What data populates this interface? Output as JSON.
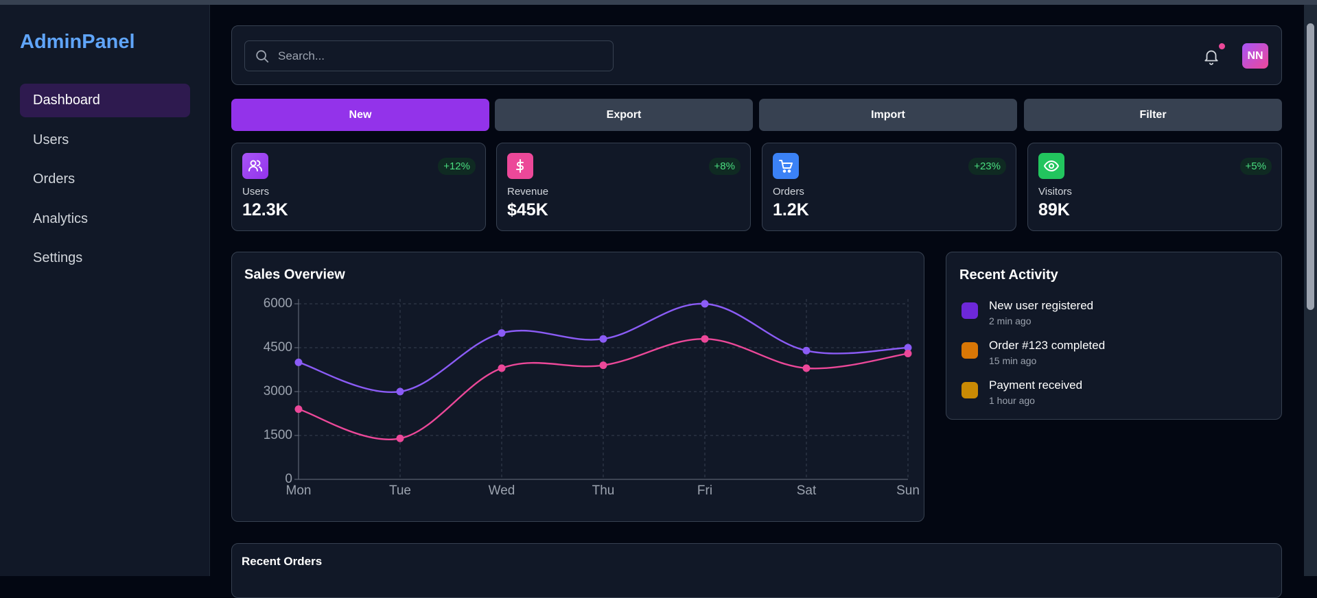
{
  "brand": "AdminPanel",
  "nav": [
    "Dashboard",
    "Users",
    "Orders",
    "Analytics",
    "Settings"
  ],
  "search_placeholder": "Search...",
  "avatar": "NN",
  "buttons": [
    "New",
    "Export",
    "Import",
    "Filter"
  ],
  "stats": [
    {
      "label": "Users",
      "value": "12.3K",
      "change": "+12%"
    },
    {
      "label": "Revenue",
      "value": "$45K",
      "change": "+8%"
    },
    {
      "label": "Orders",
      "value": "1.2K",
      "change": "+23%"
    },
    {
      "label": "Visitors",
      "value": "89K",
      "change": "+5%"
    }
  ],
  "chart_data": {
    "type": "line",
    "title": "Sales Overview",
    "categories": [
      "Mon",
      "Tue",
      "Wed",
      "Thu",
      "Fri",
      "Sat",
      "Sun"
    ],
    "series": [
      {
        "color": "#8b5cf6",
        "values": [
          4000,
          3000,
          5000,
          4800,
          6000,
          4400,
          4500
        ]
      },
      {
        "color": "#ec4899",
        "values": [
          2400,
          1400,
          3800,
          3900,
          4800,
          3800,
          4300
        ]
      }
    ],
    "ylim": [
      0,
      6000
    ],
    "yticks": [
      0,
      1500,
      3000,
      4500,
      6000
    ],
    "grid": true
  },
  "activity": {
    "title": "Recent Activity",
    "items": [
      {
        "text": "New user registered",
        "time": "2 min ago"
      },
      {
        "text": "Order #123 completed",
        "time": "15 min ago"
      },
      {
        "text": "Payment received",
        "time": "1 hour ago"
      }
    ]
  },
  "orders": {
    "title": "Recent Orders"
  }
}
